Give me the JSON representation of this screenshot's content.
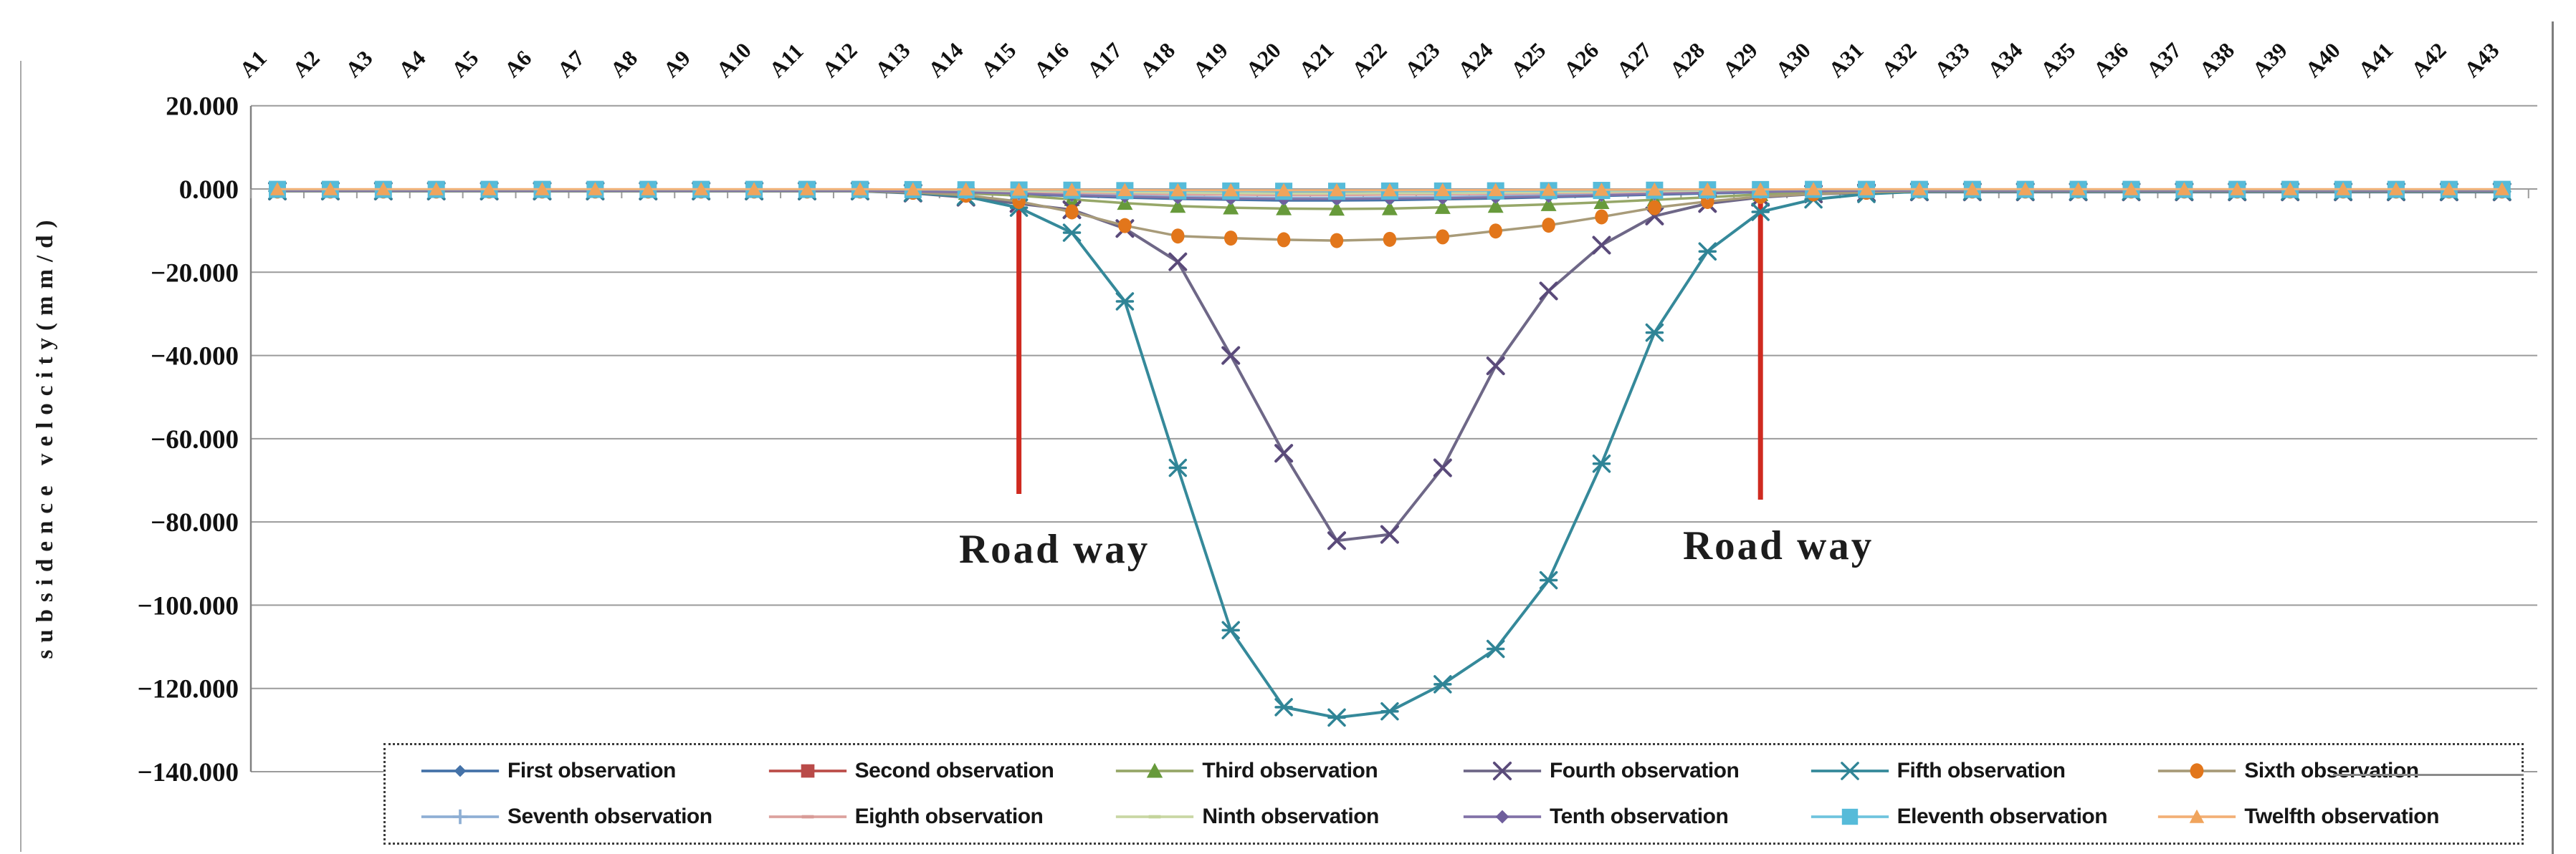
{
  "figure": {
    "background": "#ffffff",
    "grid_color": "#9b9b9b",
    "axis_color": "#808080",
    "tick_label_color": "#111111"
  },
  "axis": {
    "y_title": "subsidence velocity(mm/d)",
    "y_ticks": [
      "20.000",
      "0.000",
      "−20.000",
      "−40.000",
      "−60.000",
      "−80.000",
      "−100.000",
      "−120.000",
      "−140.000"
    ]
  },
  "annotations": {
    "roadway_left": "Road way",
    "roadway_right": "Road way",
    "roadway_line_color": "#cf2a20",
    "roadway_line_categories": [
      "A15",
      "A29"
    ]
  },
  "chart_data": {
    "type": "line",
    "title": "",
    "xlabel": "",
    "ylabel": "subsidence velocity(mm/d)",
    "ylim": [
      -140,
      20
    ],
    "y_tick_step": 20,
    "grid": true,
    "legend_position": "bottom",
    "categories": [
      "A1",
      "A2",
      "A3",
      "A4",
      "A5",
      "A6",
      "A7",
      "A8",
      "A9",
      "A10",
      "A11",
      "A12",
      "A13",
      "A14",
      "A15",
      "A16",
      "A17",
      "A18",
      "A19",
      "A20",
      "A21",
      "A22",
      "A23",
      "A24",
      "A25",
      "A26",
      "A27",
      "A28",
      "A29",
      "A30",
      "A31",
      "A32",
      "A33",
      "A34",
      "A35",
      "A36",
      "A37",
      "A38",
      "A39",
      "A40",
      "A41",
      "A42",
      "A43"
    ],
    "series": [
      {
        "name": "First observation",
        "marker": "diamond",
        "color": "#4472A8",
        "line": "#4472A8",
        "msize": 16,
        "values": [
          -0.4,
          -0.4,
          -0.4,
          -0.4,
          -0.4,
          -0.4,
          -0.4,
          -0.4,
          -0.4,
          -0.4,
          -0.4,
          -0.4,
          -0.6,
          -0.9,
          -1.3,
          -1.7,
          -2.1,
          -2.4,
          -2.6,
          -2.8,
          -2.8,
          -2.7,
          -2.5,
          -2.3,
          -2.0,
          -1.7,
          -1.4,
          -1.1,
          -0.8,
          -0.6,
          -0.5,
          -0.4,
          -0.4,
          -0.4,
          -0.4,
          -0.4,
          -0.4,
          -0.4,
          -0.4,
          -0.4,
          -0.4,
          -0.4,
          -0.4
        ]
      },
      {
        "name": "Second observation",
        "marker": "square",
        "color": "#B94A48",
        "line": "#BC4E4A",
        "msize": 18,
        "values": [
          -0.2,
          -0.2,
          -0.2,
          -0.2,
          -0.2,
          -0.2,
          -0.2,
          -0.2,
          -0.2,
          -0.2,
          -0.2,
          -0.2,
          -0.3,
          -0.4,
          -0.5,
          -0.6,
          -0.7,
          -0.8,
          -0.9,
          -1.0,
          -1.0,
          -0.9,
          -0.9,
          -0.8,
          -0.7,
          -0.6,
          -0.5,
          -0.4,
          -0.3,
          -0.2,
          -0.2,
          -0.2,
          -0.2,
          -0.2,
          -0.2,
          -0.2,
          -0.2,
          -0.2,
          -0.2,
          -0.2,
          -0.2,
          -0.2,
          -0.2
        ]
      },
      {
        "name": "Third observation",
        "marker": "triangle",
        "color": "#679A3B",
        "line": "#96A768",
        "msize": 22,
        "values": [
          -0.4,
          -0.4,
          -0.4,
          -0.4,
          -0.4,
          -0.4,
          -0.4,
          -0.4,
          -0.4,
          -0.4,
          -0.4,
          -0.4,
          -0.6,
          -1.0,
          -1.6,
          -2.5,
          -3.4,
          -4.1,
          -4.5,
          -4.7,
          -4.8,
          -4.7,
          -4.4,
          -4.1,
          -3.7,
          -3.2,
          -2.6,
          -2.0,
          -1.3,
          -0.9,
          -0.6,
          -0.4,
          -0.4,
          -0.4,
          -0.4,
          -0.4,
          -0.4,
          -0.4,
          -0.4,
          -0.4,
          -0.4,
          -0.4,
          -0.4
        ]
      },
      {
        "name": "Fourth observation",
        "marker": "x",
        "color": "#5A4A7A",
        "line": "#6E6787",
        "msize": 22,
        "values": [
          -0.5,
          -0.5,
          -0.5,
          -0.5,
          -0.5,
          -0.5,
          -0.5,
          -0.5,
          -0.5,
          -0.5,
          -0.5,
          -0.5,
          -1.0,
          -2.0,
          -3.5,
          -5.0,
          -9.5,
          -17.5,
          -40.0,
          -63.5,
          -84.5,
          -83.0,
          -67.0,
          -42.5,
          -24.5,
          -13.5,
          -6.5,
          -3.5,
          -2.0,
          -1.2,
          -0.9,
          -0.7,
          -0.7,
          -0.7,
          -0.7,
          -0.7,
          -0.7,
          -0.7,
          -0.7,
          -0.7,
          -0.7,
          -0.7,
          -0.7
        ]
      },
      {
        "name": "Fifth observation",
        "marker": "star",
        "color": "#2F8496",
        "line": "#35899A",
        "msize": 22,
        "values": [
          -0.5,
          -0.5,
          -0.5,
          -0.5,
          -0.5,
          -0.5,
          -0.5,
          -0.5,
          -0.5,
          -0.5,
          -0.5,
          -0.5,
          -0.9,
          -1.8,
          -4.5,
          -10.5,
          -27.0,
          -67.0,
          -106.0,
          -124.5,
          -127.0,
          -125.5,
          -119.0,
          -110.5,
          -94.0,
          -66.0,
          -34.5,
          -15.0,
          -5.5,
          -2.5,
          -1.2,
          -0.6,
          -0.6,
          -0.6,
          -0.6,
          -0.6,
          -0.6,
          -0.6,
          -0.6,
          -0.6,
          -0.6,
          -0.6,
          -0.6
        ]
      },
      {
        "name": "Sixth observation",
        "marker": "circle",
        "color": "#E2761B",
        "line": "#A89B79",
        "msize": 21,
        "values": [
          -0.5,
          -0.5,
          -0.5,
          -0.5,
          -0.5,
          -0.5,
          -0.5,
          -0.5,
          -0.5,
          -0.5,
          -0.5,
          -0.5,
          -0.8,
          -1.5,
          -3.0,
          -5.5,
          -8.8,
          -11.3,
          -11.8,
          -12.2,
          -12.4,
          -12.1,
          -11.5,
          -10.1,
          -8.7,
          -6.7,
          -4.5,
          -3.0,
          -1.8,
          -1.2,
          -0.8,
          -0.5,
          -0.5,
          -0.5,
          -0.5,
          -0.5,
          -0.5,
          -0.5,
          -0.5,
          -0.5,
          -0.5,
          -0.5,
          -0.5
        ]
      },
      {
        "name": "Seventh observation",
        "marker": "plus",
        "color": "#8FAFD4",
        "line": "#8FAFD4",
        "msize": 20,
        "values": [
          -0.3,
          -0.3,
          -0.3,
          -0.3,
          -0.3,
          -0.3,
          -0.3,
          -0.3,
          -0.3,
          -0.3,
          -0.3,
          -0.3,
          -0.5,
          -0.7,
          -1.0,
          -1.3,
          -1.6,
          -1.8,
          -2.0,
          -2.1,
          -2.1,
          -2.0,
          -1.9,
          -1.7,
          -1.5,
          -1.3,
          -1.0,
          -0.8,
          -0.6,
          -0.4,
          -0.3,
          -0.3,
          -0.3,
          -0.3,
          -0.3,
          -0.3,
          -0.3,
          -0.3,
          -0.3,
          -0.3,
          -0.3,
          -0.3,
          -0.3
        ]
      },
      {
        "name": "Eighth observation",
        "marker": "dash",
        "color": "#D89B97",
        "line": "#DCA29E",
        "msize": 16,
        "values": [
          -0.3,
          -0.3,
          -0.3,
          -0.3,
          -0.3,
          -0.3,
          -0.3,
          -0.3,
          -0.3,
          -0.3,
          -0.3,
          -0.3,
          -0.4,
          -0.5,
          -0.7,
          -0.9,
          -1.1,
          -1.3,
          -1.4,
          -1.5,
          -1.5,
          -1.4,
          -1.3,
          -1.2,
          -1.0,
          -0.9,
          -0.7,
          -0.5,
          -0.4,
          -0.3,
          -0.3,
          -0.3,
          -0.3,
          -0.3,
          -0.3,
          -0.3,
          -0.3,
          -0.3,
          -0.3,
          -0.3,
          -0.3,
          -0.3,
          -0.3
        ]
      },
      {
        "name": "Ninth observation",
        "marker": "dash",
        "color": "#C4D49B",
        "line": "#C9D7A4",
        "msize": 16,
        "values": [
          -0.2,
          -0.2,
          -0.2,
          -0.2,
          -0.2,
          -0.2,
          -0.2,
          -0.2,
          -0.2,
          -0.2,
          -0.2,
          -0.2,
          -0.3,
          -0.4,
          -0.5,
          -0.6,
          -0.8,
          -0.9,
          -1.0,
          -1.1,
          -1.1,
          -1.0,
          -1.0,
          -0.9,
          -0.8,
          -0.7,
          -0.5,
          -0.4,
          -0.3,
          -0.2,
          -0.2,
          -0.2,
          -0.2,
          -0.2,
          -0.2,
          -0.2,
          -0.2,
          -0.2,
          -0.2,
          -0.2,
          -0.2,
          -0.2,
          -0.2
        ]
      },
      {
        "name": "Tenth observation",
        "marker": "diamond",
        "color": "#6F5E9C",
        "line": "#8273A8",
        "msize": 18,
        "values": [
          -0.4,
          -0.4,
          -0.4,
          -0.4,
          -0.4,
          -0.4,
          -0.4,
          -0.4,
          -0.4,
          -0.4,
          -0.4,
          -0.4,
          -0.6,
          -0.8,
          -1.1,
          -1.5,
          -1.8,
          -2.1,
          -2.3,
          -2.4,
          -2.4,
          -2.3,
          -2.2,
          -2.0,
          -1.8,
          -1.5,
          -1.2,
          -0.9,
          -0.7,
          -0.5,
          -0.4,
          -0.4,
          -0.4,
          -0.4,
          -0.4,
          -0.4,
          -0.4,
          -0.4,
          -0.4,
          -0.4,
          -0.4,
          -0.4,
          -0.4
        ]
      },
      {
        "name": "Eleventh observation",
        "marker": "square",
        "color": "#56BBD9",
        "line": "#6FC4DE",
        "msize": 24,
        "values": [
          -0.1,
          -0.1,
          -0.1,
          -0.1,
          -0.1,
          -0.1,
          -0.1,
          -0.1,
          -0.1,
          -0.1,
          -0.1,
          -0.1,
          -0.15,
          -0.2,
          -0.25,
          -0.3,
          -0.4,
          -0.45,
          -0.5,
          -0.55,
          -0.55,
          -0.5,
          -0.5,
          -0.45,
          -0.4,
          -0.35,
          -0.3,
          -0.2,
          -0.15,
          -0.1,
          -0.1,
          -0.1,
          -0.1,
          -0.1,
          -0.1,
          -0.1,
          -0.1,
          -0.1,
          -0.1,
          -0.1,
          -0.1,
          -0.1,
          -0.1
        ]
      },
      {
        "name": "Twelfth observation",
        "marker": "triangle",
        "color": "#F0A45C",
        "line": "#F2B077",
        "msize": 20,
        "values": [
          -0.05,
          -0.05,
          -0.05,
          -0.05,
          -0.05,
          -0.05,
          -0.05,
          -0.05,
          -0.05,
          -0.05,
          -0.05,
          -0.05,
          -0.1,
          -0.1,
          -0.15,
          -0.2,
          -0.25,
          -0.3,
          -0.3,
          -0.3,
          -0.3,
          -0.3,
          -0.25,
          -0.25,
          -0.2,
          -0.2,
          -0.15,
          -0.1,
          -0.1,
          -0.05,
          -0.05,
          -0.05,
          -0.05,
          -0.05,
          -0.05,
          -0.05,
          -0.05,
          -0.05,
          -0.05,
          -0.05,
          -0.05,
          -0.05,
          -0.05
        ]
      }
    ]
  }
}
